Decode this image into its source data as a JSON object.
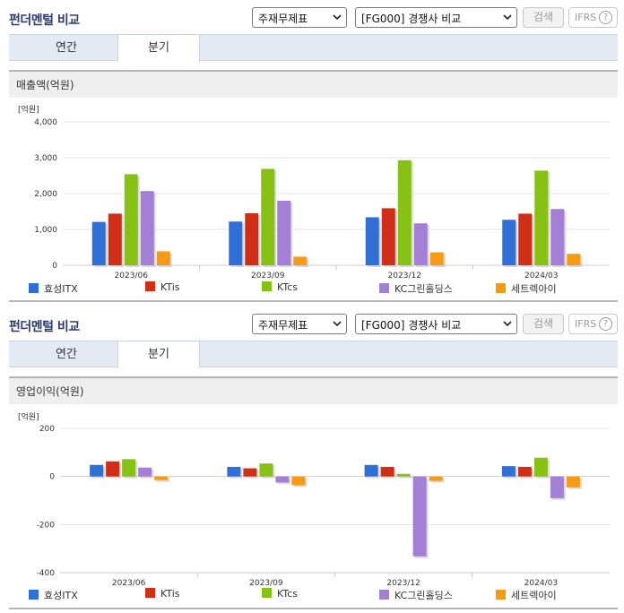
{
  "panels": [
    {
      "title": "펀더멘털 비교",
      "select1": "주재무제표",
      "select2": "[FG000] 경쟁사 비교",
      "search_label": "검색",
      "ifrs_label": "IFRS",
      "help_label": "?",
      "tabs": [
        {
          "label": "연간",
          "active": false
        },
        {
          "label": "분기",
          "active": true
        }
      ],
      "section_title": "매출액(억원)",
      "chart_data": {
        "type": "bar",
        "unit_label": "[억원]",
        "categories": [
          "2023/06",
          "2023/09",
          "2023/12",
          "2024/03"
        ],
        "ylim": [
          0,
          4000
        ],
        "yticks": [
          0,
          1000,
          2000,
          3000,
          4000
        ],
        "ytick_labels": [
          "0",
          "1,000",
          "2,000",
          "3,000",
          "4,000"
        ],
        "grid": true,
        "series": [
          {
            "name": "효성ITX",
            "color": "#2f6fd6",
            "values": [
              1210,
              1220,
              1340,
              1270
            ]
          },
          {
            "name": "KTis",
            "color": "#d12e17",
            "values": [
              1440,
              1450,
              1590,
              1440
            ]
          },
          {
            "name": "KTcs",
            "color": "#86c114",
            "values": [
              2540,
              2690,
              2930,
              2640
            ]
          },
          {
            "name": "KC그린홀딩스",
            "color": "#a47fd6",
            "values": [
              2070,
              1800,
              1170,
              1570
            ]
          },
          {
            "name": "세트렉아이",
            "color": "#f59b16",
            "values": [
              390,
              240,
              360,
              320
            ]
          }
        ]
      }
    },
    {
      "title": "펀더멘털 비교",
      "select1": "주재무제표",
      "select2": "[FG000] 경쟁사 비교",
      "search_label": "검색",
      "ifrs_label": "IFRS",
      "help_label": "?",
      "tabs": [
        {
          "label": "연간",
          "active": false
        },
        {
          "label": "분기",
          "active": true
        }
      ],
      "section_title": "영업이익(억원)",
      "chart_data": {
        "type": "bar",
        "unit_label": "[억원]",
        "categories": [
          "2023/06",
          "2023/09",
          "2023/12",
          "2024/03"
        ],
        "ylim": [
          -400,
          200
        ],
        "yticks": [
          -400,
          -200,
          0,
          200
        ],
        "ytick_labels": [
          "-400",
          "-200",
          "0",
          "200"
        ],
        "grid": true,
        "series": [
          {
            "name": "효성ITX",
            "color": "#2f6fd6",
            "values": [
              48,
              40,
              48,
              43
            ]
          },
          {
            "name": "KTis",
            "color": "#d12e17",
            "values": [
              63,
              34,
              40,
              40
            ]
          },
          {
            "name": "KTcs",
            "color": "#86c114",
            "values": [
              72,
              54,
              11,
              78
            ]
          },
          {
            "name": "KC그린홀딩스",
            "color": "#a47fd6",
            "values": [
              37,
              -25,
              -332,
              -90
            ]
          },
          {
            "name": "세트렉아이",
            "color": "#f59b16",
            "values": [
              -15,
              -36,
              -18,
              -45
            ]
          }
        ]
      }
    }
  ]
}
